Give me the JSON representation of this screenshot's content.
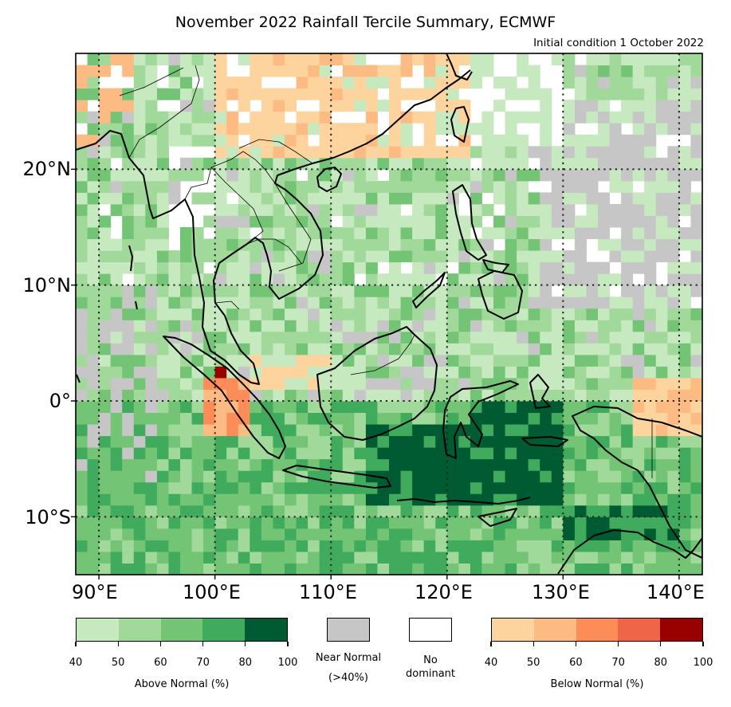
{
  "title": "November 2022 Rainfall Tercile Summary, ECMWF",
  "subtitle": "Initial condition 1 October 2022",
  "map": {
    "lon_range": [
      88,
      142
    ],
    "lat_range": [
      -15,
      30
    ],
    "grid_resolution_deg": 1,
    "graticule": "dotted",
    "lat_labels": [
      "20°N",
      "10°N",
      "0°",
      "10°S"
    ],
    "lon_labels": [
      "90°E",
      "100°E",
      "110°E",
      "120°E",
      "130°E",
      "140°E"
    ]
  },
  "legend": {
    "above": {
      "caption": "Above Normal (%)",
      "ticks": [
        "40",
        "50",
        "60",
        "70",
        "80",
        "100"
      ],
      "colors": [
        "#c7e9c0",
        "#a1d99b",
        "#74c476",
        "#41ab5d",
        "#005a32"
      ]
    },
    "near": {
      "caption_line1": "Near Normal",
      "caption_line2": "(>40%)",
      "color": "#c6c6c6"
    },
    "nodominant": {
      "caption_line1": "No",
      "caption_line2": "dominant",
      "color": "#ffffff"
    },
    "below": {
      "caption": "Below Normal (%)",
      "ticks": [
        "40",
        "50",
        "60",
        "70",
        "80",
        "100"
      ],
      "colors": [
        "#fdd49e",
        "#fdbb84",
        "#fc8d59",
        "#ef6548",
        "#990000"
      ]
    }
  }
}
